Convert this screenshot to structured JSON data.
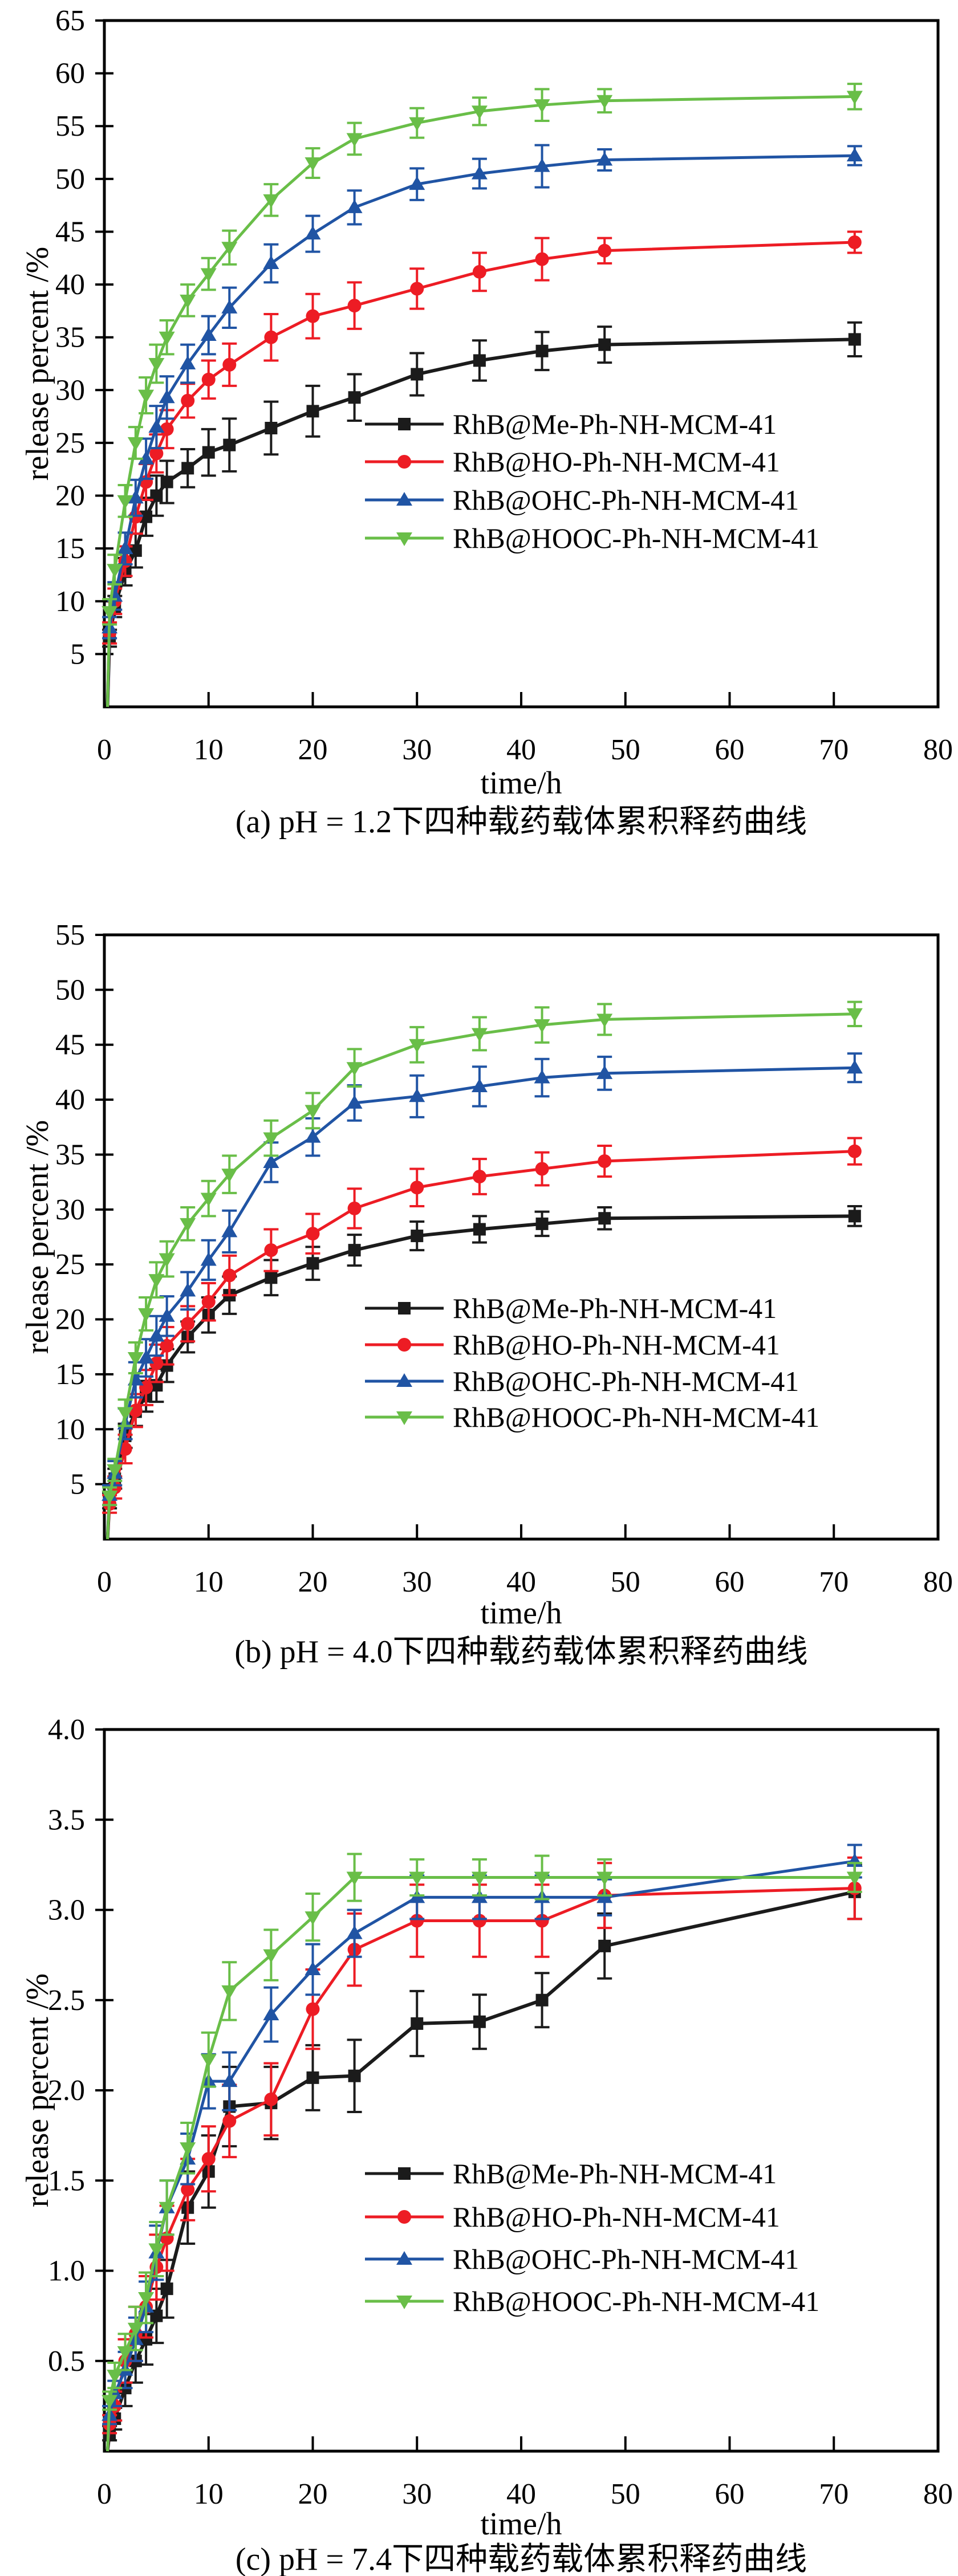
{
  "figure": {
    "background": "#ffffff",
    "frame_color": "#000000",
    "panel_count": 3,
    "description_visible_text_only": true
  },
  "chart_data": [
    {
      "panel": "a",
      "type": "line",
      "title": "(a) pH = 1.2下四种载药载体累积释药曲线",
      "xlabel": "time/h",
      "ylabel": "release percent /%",
      "xlim": [
        0,
        80
      ],
      "ylim": [
        0,
        65
      ],
      "xticks": [
        0,
        10,
        20,
        30,
        40,
        50,
        60,
        70,
        80
      ],
      "yticks": [
        5,
        10,
        15,
        20,
        25,
        30,
        35,
        40,
        45,
        50,
        55,
        60,
        65
      ],
      "grid": false,
      "legend_position": "inside-center-right",
      "x": [
        0.5,
        1,
        2,
        3,
        4,
        5,
        6,
        8,
        10,
        12,
        16,
        20,
        24,
        30,
        36,
        42,
        48,
        72
      ],
      "series": [
        {
          "name": "RhB@Me-Ph-NH-MCM-41",
          "color": "#1b1b1b",
          "marker": "square",
          "values": [
            6.5,
            9.5,
            12.8,
            14.8,
            18.0,
            20.0,
            21.3,
            22.6,
            24.1,
            24.8,
            26.4,
            28.0,
            29.3,
            31.5,
            32.8,
            33.7,
            34.3,
            34.8
          ],
          "errors": [
            0.8,
            1.0,
            1.3,
            1.6,
            1.8,
            1.9,
            2.0,
            1.8,
            2.2,
            2.5,
            2.5,
            2.4,
            2.2,
            2.0,
            1.9,
            1.8,
            1.7,
            1.6
          ]
        },
        {
          "name": "RhB@HO-Ph-NH-MCM-41",
          "color": "#ed1c24",
          "marker": "circle",
          "values": [
            7.0,
            10.0,
            13.8,
            18.0,
            21.3,
            24.0,
            26.3,
            29.0,
            31.0,
            32.4,
            35.0,
            37.0,
            38.0,
            39.6,
            41.2,
            42.4,
            43.2,
            44.0
          ],
          "errors": [
            1.0,
            1.2,
            1.4,
            1.6,
            1.7,
            1.8,
            1.8,
            1.6,
            1.8,
            2.0,
            2.2,
            2.1,
            2.2,
            1.9,
            1.8,
            2.0,
            1.2,
            1.0
          ]
        },
        {
          "name": "RhB@OHC-Ph-NH-MCM-41",
          "color": "#2054a4",
          "marker": "triangle-up",
          "values": [
            7.5,
            10.5,
            15.0,
            19.8,
            23.5,
            26.5,
            29.3,
            32.5,
            35.2,
            37.8,
            42.0,
            44.8,
            47.3,
            49.5,
            50.5,
            51.2,
            51.8,
            52.2
          ],
          "errors": [
            1.0,
            1.3,
            1.5,
            1.7,
            1.9,
            2.0,
            2.0,
            1.8,
            1.8,
            1.9,
            1.8,
            1.7,
            1.6,
            1.5,
            1.4,
            2.0,
            1.0,
            0.9
          ]
        },
        {
          "name": "RhB@HOOC-Ph-NH-MCM-41",
          "color": "#69be48",
          "marker": "triangle-down",
          "values": [
            9.0,
            13.0,
            19.5,
            25.0,
            29.5,
            32.5,
            35.0,
            38.5,
            41.0,
            43.5,
            48.0,
            51.5,
            53.8,
            55.3,
            56.4,
            57.0,
            57.4,
            57.8
          ],
          "errors": [
            1.2,
            1.4,
            1.5,
            1.5,
            1.7,
            1.8,
            1.6,
            1.5,
            1.5,
            1.6,
            1.5,
            1.4,
            1.5,
            1.4,
            1.3,
            1.5,
            1.1,
            1.2
          ]
        }
      ]
    },
    {
      "panel": "b",
      "type": "line",
      "title": "(b) pH = 4.0下四种载药载体累积释药曲线",
      "xlabel": "time/h",
      "ylabel": "release percent /%",
      "xlim": [
        0,
        80
      ],
      "ylim": [
        0,
        55
      ],
      "xticks": [
        0,
        10,
        20,
        30,
        40,
        50,
        60,
        70,
        80
      ],
      "yticks": [
        5,
        10,
        15,
        20,
        25,
        30,
        35,
        40,
        45,
        50,
        55
      ],
      "grid": false,
      "legend_position": "inside-center-right",
      "x": [
        0.5,
        1,
        2,
        3,
        4,
        5,
        6,
        8,
        10,
        12,
        16,
        20,
        24,
        30,
        36,
        42,
        48,
        72
      ],
      "series": [
        {
          "name": "RhB@Me-Ph-NH-MCM-41",
          "color": "#1b1b1b",
          "marker": "square",
          "values": [
            3.5,
            5.5,
            9.4,
            11.6,
            13.0,
            14.0,
            15.8,
            18.4,
            20.4,
            22.2,
            23.8,
            25.1,
            26.3,
            27.6,
            28.2,
            28.7,
            29.2,
            29.4
          ],
          "errors": [
            0.7,
            0.9,
            1.1,
            1.3,
            1.4,
            1.5,
            1.5,
            1.4,
            1.6,
            1.7,
            1.6,
            1.5,
            1.4,
            1.3,
            1.2,
            1.1,
            1.0,
            0.9
          ]
        },
        {
          "name": "RhB@HO-Ph-NH-MCM-41",
          "color": "#ed1c24",
          "marker": "circle",
          "values": [
            3.2,
            4.7,
            8.2,
            11.7,
            13.8,
            16.0,
            17.6,
            19.6,
            21.6,
            24.0,
            26.3,
            27.8,
            30.1,
            32.0,
            33.0,
            33.7,
            34.4,
            35.3
          ],
          "errors": [
            0.8,
            1.0,
            1.3,
            1.5,
            1.6,
            1.7,
            1.7,
            1.6,
            1.7,
            1.8,
            1.9,
            1.8,
            1.8,
            1.7,
            1.6,
            1.5,
            1.4,
            1.2
          ]
        },
        {
          "name": "RhB@OHC-Ph-NH-MCM-41",
          "color": "#2054a4",
          "marker": "triangle-up",
          "values": [
            4.0,
            6.0,
            10.5,
            14.5,
            16.5,
            18.5,
            20.3,
            22.6,
            25.4,
            28.0,
            34.3,
            36.6,
            39.7,
            40.3,
            41.2,
            42.0,
            42.4,
            42.9
          ],
          "errors": [
            0.9,
            1.1,
            1.4,
            1.6,
            1.7,
            1.8,
            1.8,
            1.7,
            1.8,
            1.9,
            1.8,
            1.7,
            1.6,
            1.9,
            1.8,
            1.7,
            1.5,
            1.3
          ]
        },
        {
          "name": "RhB@HOOC-Ph-NH-MCM-41",
          "color": "#69be48",
          "marker": "triangle-down",
          "values": [
            3.9,
            6.3,
            11.5,
            16.5,
            20.5,
            23.6,
            25.5,
            28.7,
            31.0,
            33.2,
            36.5,
            39.0,
            42.9,
            45.0,
            46.0,
            46.8,
            47.3,
            47.8
          ],
          "errors": [
            0.8,
            1.0,
            1.2,
            1.4,
            1.5,
            1.6,
            1.6,
            1.5,
            1.6,
            1.7,
            1.6,
            1.6,
            1.7,
            1.6,
            1.5,
            1.6,
            1.4,
            1.1
          ]
        }
      ]
    },
    {
      "panel": "c",
      "type": "line",
      "title": "(c) pH = 7.4下四种载药载体累积释药曲线",
      "xlabel": "time/h",
      "ylabel": "release percent /%",
      "xlim": [
        0,
        80
      ],
      "ylim": [
        0,
        4.0
      ],
      "xticks": [
        0,
        10,
        20,
        30,
        40,
        50,
        60,
        70,
        80
      ],
      "yticks": [
        0.5,
        1.0,
        1.5,
        2.0,
        2.5,
        3.0,
        3.5,
        4.0
      ],
      "ytick_format": "1dp",
      "grid": false,
      "legend_position": "inside-center-right",
      "x": [
        0.5,
        1,
        2,
        3,
        4,
        5,
        6,
        8,
        10,
        12,
        16,
        20,
        24,
        30,
        36,
        42,
        48,
        72
      ],
      "series": [
        {
          "name": "RhB@Me-Ph-NH-MCM-41",
          "color": "#1b1b1b",
          "marker": "square",
          "values": [
            0.1,
            0.18,
            0.35,
            0.5,
            0.62,
            0.75,
            0.9,
            1.35,
            1.55,
            1.91,
            1.93,
            2.07,
            2.08,
            2.37,
            2.38,
            2.5,
            2.8,
            3.1
          ],
          "errors": [
            0.04,
            0.06,
            0.1,
            0.12,
            0.14,
            0.15,
            0.16,
            0.2,
            0.2,
            0.22,
            0.2,
            0.18,
            0.2,
            0.18,
            0.15,
            0.15,
            0.18,
            0.15
          ]
        },
        {
          "name": "RhB@HO-Ph-NH-MCM-41",
          "color": "#ed1c24",
          "marker": "circle",
          "values": [
            0.15,
            0.25,
            0.5,
            0.65,
            0.8,
            1.02,
            1.18,
            1.45,
            1.62,
            1.83,
            1.95,
            2.45,
            2.78,
            2.94,
            2.94,
            2.94,
            3.08,
            3.12
          ],
          "errors": [
            0.05,
            0.08,
            0.12,
            0.15,
            0.17,
            0.18,
            0.18,
            0.17,
            0.18,
            0.2,
            0.2,
            0.22,
            0.2,
            0.2,
            0.2,
            0.2,
            0.18,
            0.17
          ]
        },
        {
          "name": "RhB@OHC-Ph-NH-MCM-41",
          "color": "#2054a4",
          "marker": "triangle-up",
          "values": [
            0.2,
            0.32,
            0.45,
            0.62,
            0.8,
            1.1,
            1.35,
            1.62,
            2.05,
            2.05,
            2.42,
            2.67,
            2.87,
            3.07,
            3.07,
            3.07,
            3.07,
            3.27
          ],
          "errors": [
            0.05,
            0.07,
            0.1,
            0.12,
            0.14,
            0.15,
            0.15,
            0.14,
            0.15,
            0.16,
            0.15,
            0.14,
            0.13,
            0.12,
            0.12,
            0.12,
            0.1,
            0.09
          ]
        },
        {
          "name": "RhB@HOOC-Ph-NH-MCM-41",
          "color": "#69be48",
          "marker": "triangle-down",
          "values": [
            0.28,
            0.42,
            0.55,
            0.68,
            0.85,
            1.12,
            1.35,
            1.68,
            2.17,
            2.55,
            2.75,
            2.96,
            3.18,
            3.18,
            3.18,
            3.18,
            3.18,
            3.18
          ],
          "errors": [
            0.05,
            0.07,
            0.1,
            0.12,
            0.14,
            0.15,
            0.15,
            0.14,
            0.15,
            0.16,
            0.14,
            0.13,
            0.13,
            0.1,
            0.1,
            0.12,
            0.1,
            0.08
          ]
        }
      ]
    }
  ]
}
